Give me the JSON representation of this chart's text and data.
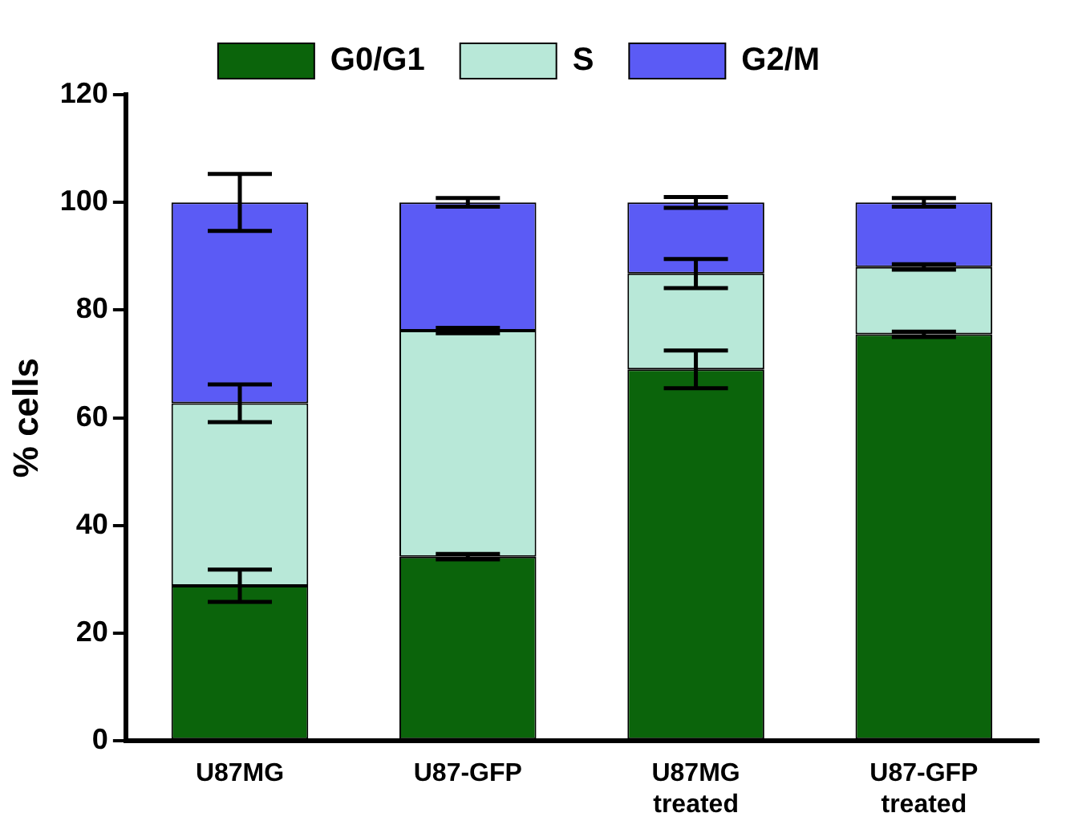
{
  "chart_data": {
    "type": "bar",
    "stacked": true,
    "ylabel": "% cells",
    "categories": [
      "U87MG",
      "U87-GFP",
      "U87MG treated",
      "U87-GFP treated"
    ],
    "series": [
      {
        "name": "G0/G1",
        "color": "#0b640b",
        "values": [
          28.8,
          34.2,
          69,
          75.5
        ],
        "errors": [
          3,
          0.5,
          3.5,
          0.5
        ]
      },
      {
        "name": "S",
        "color": "#b8e8d8",
        "values": [
          33.9,
          42,
          17.8,
          12.5
        ],
        "errors": [
          3.5,
          0.5,
          2.7,
          0.5
        ]
      },
      {
        "name": "G2/M",
        "color": "#5b5bf5",
        "values": [
          37.3,
          23.8,
          13.2,
          12
        ],
        "errors": [
          5.3,
          0.8,
          1,
          0.8
        ]
      }
    ],
    "ylim": [
      0,
      120
    ],
    "yticks": [
      0,
      20,
      40,
      60,
      80,
      100,
      120
    ],
    "legend": "top",
    "grid": false
  }
}
